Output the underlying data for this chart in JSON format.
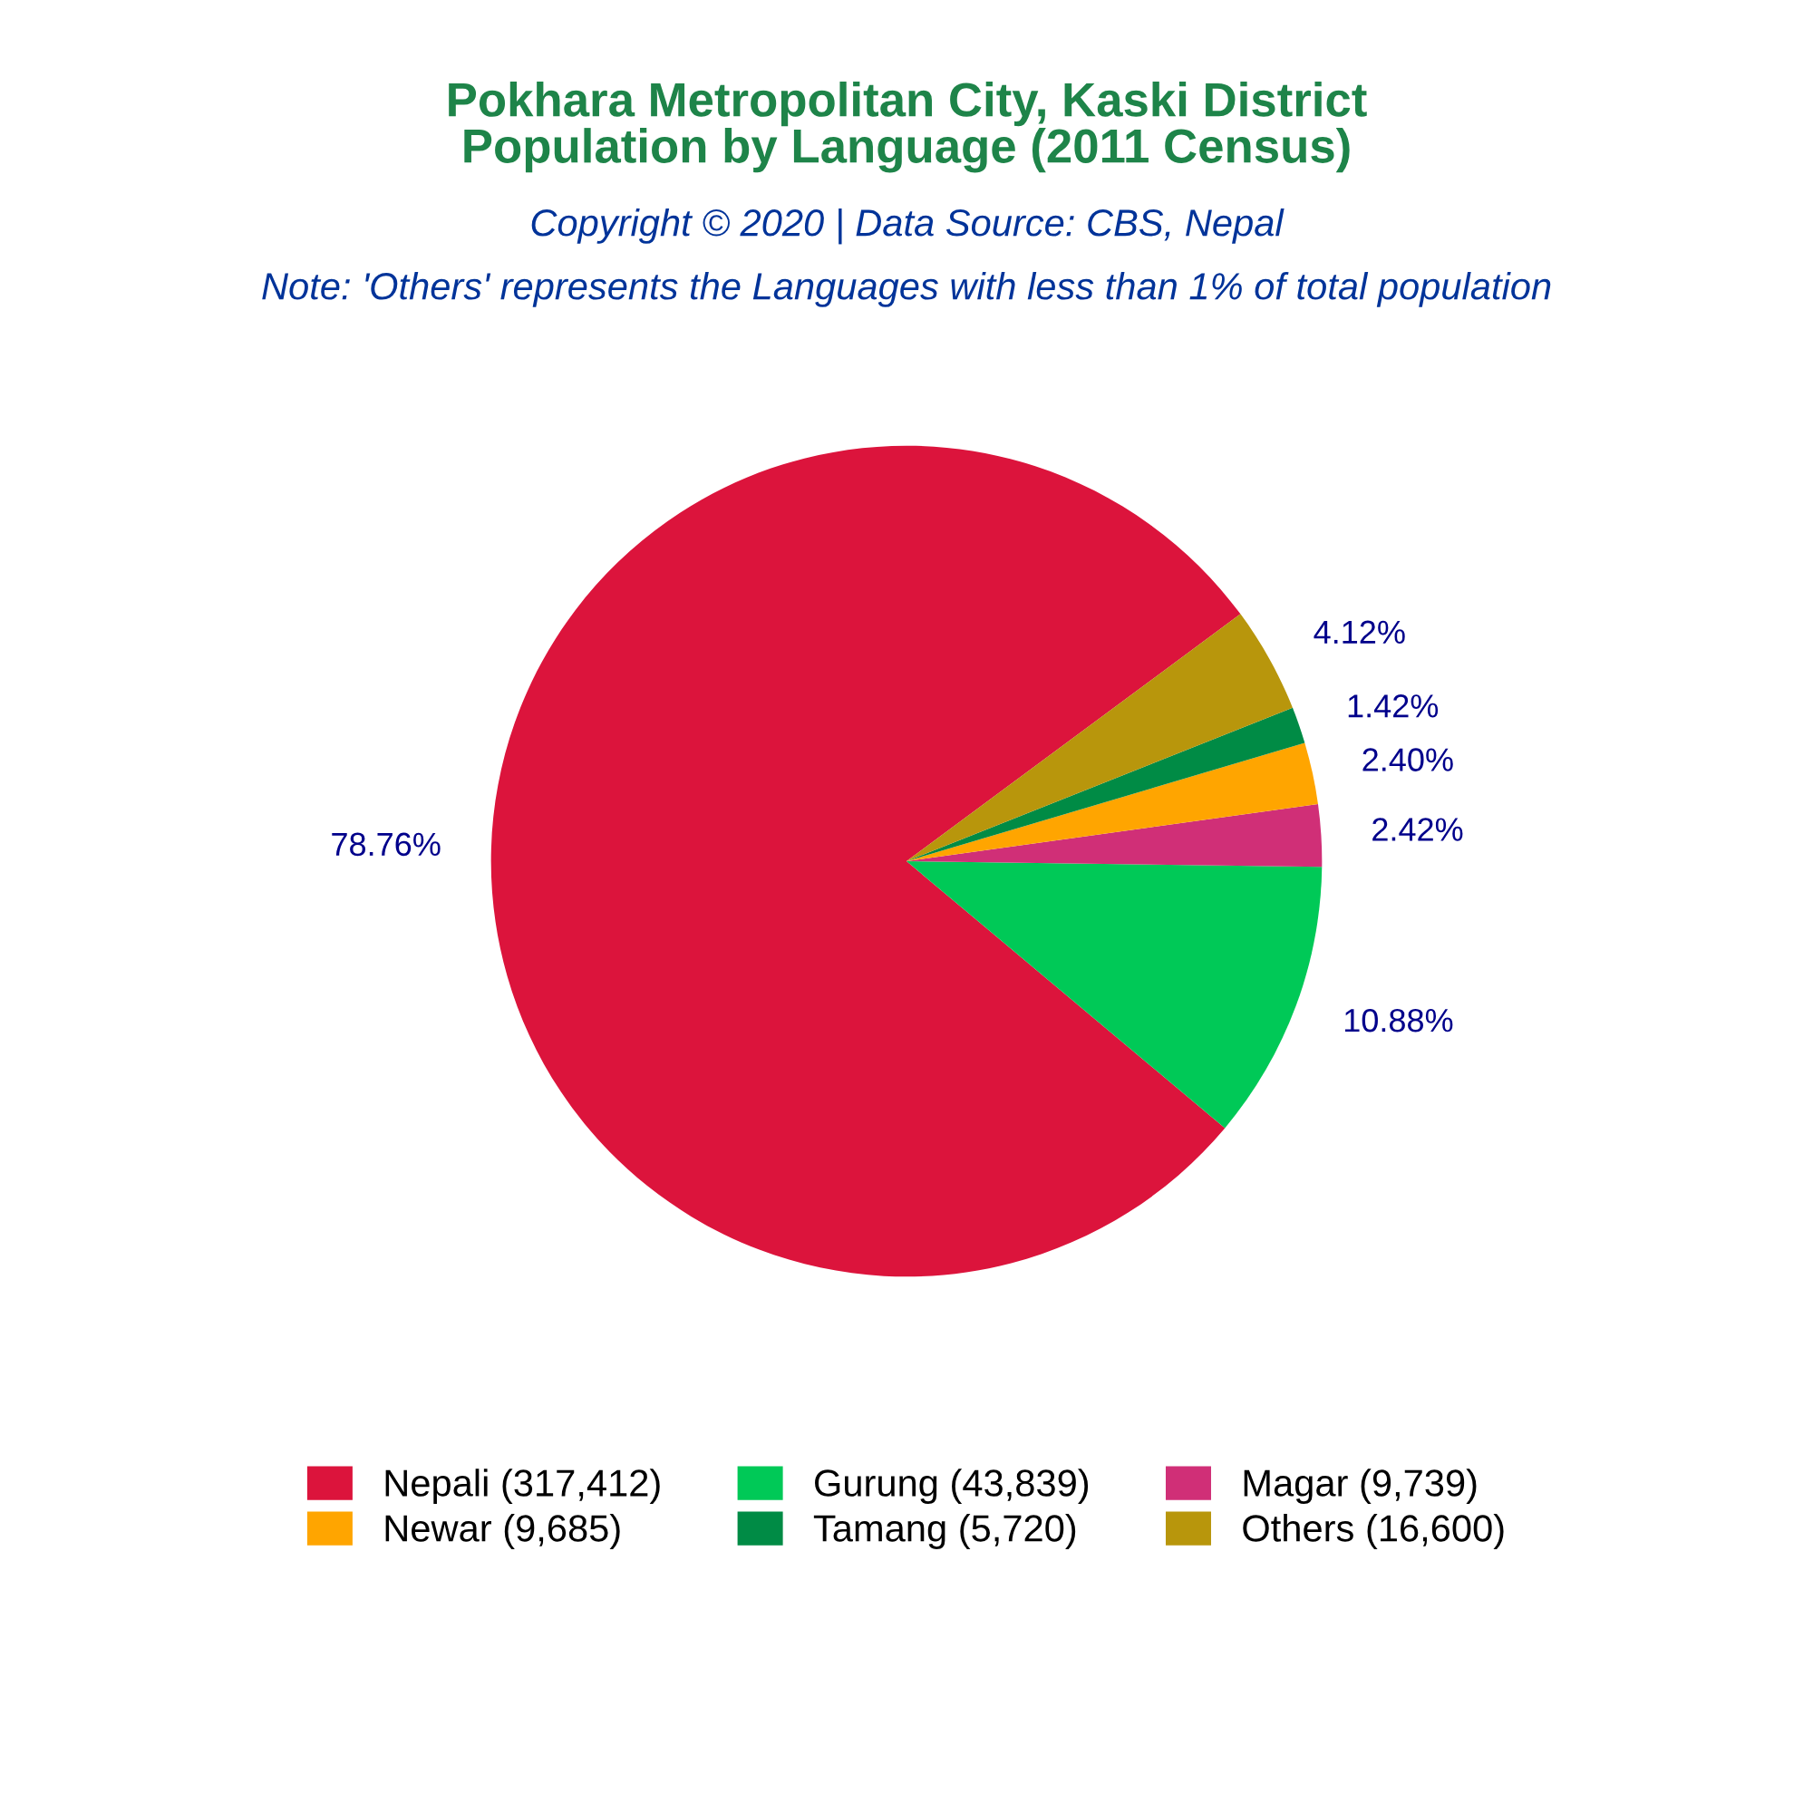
{
  "chart_data": {
    "type": "pie",
    "title": "Pokhara Metropolitan City, Kaski District\nPopulation by Language (2011 Census)",
    "subtitle": "Copyright © 2020 | Data Source: CBS, Nepal",
    "annotations": [
      "Note: 'Others' represents the Languages with less than 1% of total population"
    ],
    "categories": [
      "Nepali (317,412)",
      "Gurung (43,839)",
      "Magar (9,739)",
      "Newar (9,685)",
      "Tamang (5,720)",
      "Others (16,600)"
    ],
    "values": [
      78.76,
      10.88,
      2.42,
      2.4,
      1.42,
      4.12
    ],
    "value_labels": [
      "78.76%",
      "10.88%",
      "2.42%",
      "2.40%",
      "1.42%",
      "4.12%"
    ],
    "colors": [
      "#dc143c",
      "#00c957",
      "#d02f77",
      "#ffa500",
      "#008b45",
      "#b8960c"
    ],
    "legend": "bottom"
  }
}
